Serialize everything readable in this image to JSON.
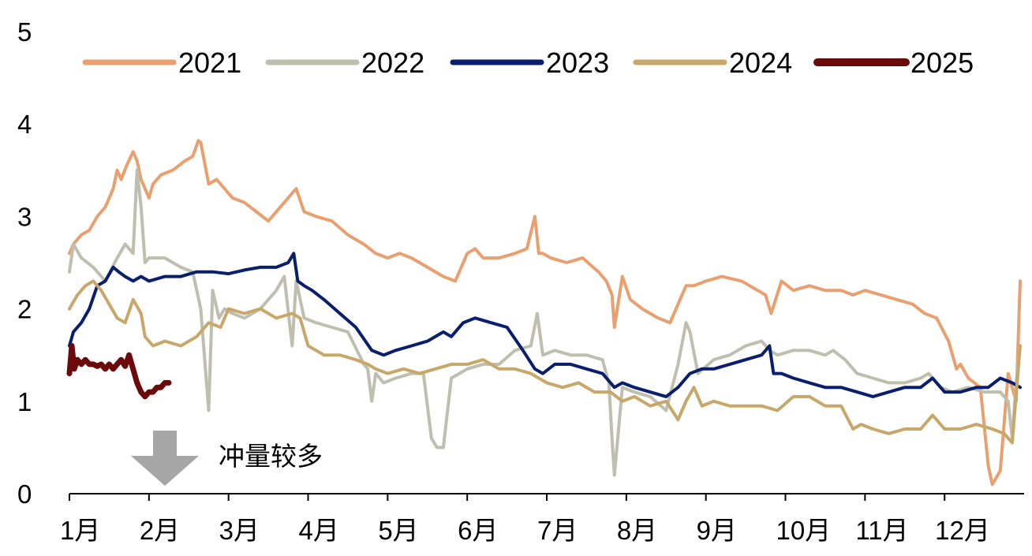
{
  "chart_data": {
    "type": "line",
    "title": "",
    "xlabel": "",
    "ylabel": "",
    "ylim": [
      0,
      5
    ],
    "yticks": [
      0,
      1,
      2,
      3,
      4,
      5
    ],
    "xlim": [
      1,
      13
    ],
    "xticks": [
      {
        "value": 1,
        "label": "1月"
      },
      {
        "value": 2,
        "label": "2月"
      },
      {
        "value": 3,
        "label": "3月"
      },
      {
        "value": 4,
        "label": "4月"
      },
      {
        "value": 5,
        "label": "5月"
      },
      {
        "value": 6,
        "label": "6月"
      },
      {
        "value": 7,
        "label": "7月"
      },
      {
        "value": 8,
        "label": "8月"
      },
      {
        "value": 9,
        "label": "9月"
      },
      {
        "value": 10,
        "label": "10月"
      },
      {
        "value": 11,
        "label": "11月"
      },
      {
        "value": 12,
        "label": "12月"
      }
    ],
    "grid": false,
    "legend_position": "top",
    "annotation": {
      "text": "冲量较多",
      "arrow": "down",
      "arrow_color": "#A6A6A6",
      "x": 2.2,
      "y": 0.7
    },
    "series": [
      {
        "name": "2021",
        "color": "#E8A070",
        "width": 4,
        "x": [
          1.0,
          1.05,
          1.15,
          1.25,
          1.35,
          1.45,
          1.55,
          1.6,
          1.65,
          1.72,
          1.8,
          1.85,
          1.9,
          1.95,
          2.0,
          2.05,
          2.15,
          2.3,
          2.45,
          2.55,
          2.62,
          2.65,
          2.75,
          2.85,
          2.95,
          3.05,
          3.2,
          3.35,
          3.5,
          3.65,
          3.8,
          3.85,
          3.95,
          4.1,
          4.3,
          4.5,
          4.7,
          4.85,
          5.0,
          5.15,
          5.3,
          5.5,
          5.7,
          5.85,
          6.0,
          6.1,
          6.2,
          6.4,
          6.6,
          6.75,
          6.85,
          6.9,
          6.95,
          7.05,
          7.25,
          7.45,
          7.65,
          7.75,
          7.82,
          7.85,
          7.95,
          8.05,
          8.2,
          8.4,
          8.55,
          8.65,
          8.75,
          8.85,
          9.0,
          9.2,
          9.45,
          9.65,
          9.75,
          9.82,
          9.95,
          10.1,
          10.3,
          10.5,
          10.7,
          10.85,
          11.0,
          11.2,
          11.4,
          11.6,
          11.75,
          11.9,
          12.05,
          12.15,
          12.2,
          12.3,
          12.45,
          12.55,
          12.6,
          12.7,
          12.8,
          12.9,
          12.95
        ],
        "y": [
          2.6,
          2.7,
          2.8,
          2.85,
          3.0,
          3.1,
          3.3,
          3.5,
          3.4,
          3.55,
          3.7,
          3.6,
          3.4,
          3.3,
          3.2,
          3.35,
          3.45,
          3.5,
          3.6,
          3.65,
          3.82,
          3.8,
          3.35,
          3.4,
          3.3,
          3.2,
          3.15,
          3.05,
          2.95,
          3.1,
          3.25,
          3.3,
          3.05,
          3.0,
          2.95,
          2.8,
          2.7,
          2.6,
          2.55,
          2.6,
          2.55,
          2.45,
          2.35,
          2.3,
          2.6,
          2.65,
          2.55,
          2.55,
          2.6,
          2.65,
          3.0,
          2.6,
          2.6,
          2.55,
          2.5,
          2.55,
          2.4,
          2.3,
          2.15,
          1.8,
          2.35,
          2.1,
          2.0,
          1.9,
          1.85,
          2.05,
          2.25,
          2.25,
          2.3,
          2.35,
          2.3,
          2.2,
          2.15,
          1.95,
          2.3,
          2.2,
          2.25,
          2.2,
          2.2,
          2.15,
          2.2,
          2.15,
          2.1,
          2.05,
          1.95,
          1.9,
          1.65,
          1.35,
          1.4,
          1.25,
          1.15,
          0.3,
          0.1,
          0.25,
          1.3,
          1.0,
          2.3
        ]
      },
      {
        "name": "2022",
        "color": "#BFBFAF",
        "width": 4,
        "x": [
          1.0,
          1.05,
          1.15,
          1.3,
          1.45,
          1.6,
          1.7,
          1.8,
          1.85,
          1.9,
          1.95,
          2.0,
          2.2,
          2.4,
          2.55,
          2.65,
          2.75,
          2.8,
          2.88,
          2.95,
          3.05,
          3.2,
          3.4,
          3.6,
          3.7,
          3.8,
          3.85,
          3.95,
          4.1,
          4.3,
          4.5,
          4.7,
          4.75,
          4.8,
          4.85,
          4.95,
          5.1,
          5.3,
          5.45,
          5.55,
          5.62,
          5.7,
          5.8,
          6.0,
          6.2,
          6.4,
          6.6,
          6.8,
          6.88,
          6.95,
          7.1,
          7.3,
          7.5,
          7.7,
          7.78,
          7.82,
          7.85,
          7.95,
          8.1,
          8.3,
          8.5,
          8.65,
          8.75,
          8.8,
          8.9,
          9.1,
          9.3,
          9.5,
          9.7,
          9.8,
          9.9,
          10.1,
          10.3,
          10.5,
          10.6,
          10.75,
          10.9,
          11.1,
          11.3,
          11.5,
          11.7,
          11.8,
          11.95,
          12.1,
          12.3,
          12.5,
          12.7,
          12.8,
          12.85,
          12.9,
          12.95
        ],
        "y": [
          2.4,
          2.7,
          2.55,
          2.45,
          2.3,
          2.55,
          2.7,
          2.6,
          3.5,
          3.1,
          2.5,
          2.55,
          2.55,
          2.45,
          2.4,
          2.0,
          0.9,
          2.2,
          1.9,
          2.0,
          1.95,
          1.9,
          2.0,
          2.2,
          2.35,
          1.6,
          2.3,
          1.9,
          1.85,
          1.8,
          1.75,
          1.4,
          1.35,
          1.0,
          1.3,
          1.2,
          1.25,
          1.3,
          1.3,
          0.6,
          0.5,
          0.5,
          1.25,
          1.35,
          1.4,
          1.4,
          1.55,
          1.6,
          1.95,
          1.5,
          1.55,
          1.5,
          1.5,
          1.45,
          1.2,
          0.6,
          0.2,
          1.15,
          1.1,
          1.05,
          0.9,
          1.4,
          1.85,
          1.75,
          1.3,
          1.45,
          1.5,
          1.6,
          1.65,
          1.55,
          1.5,
          1.55,
          1.55,
          1.5,
          1.55,
          1.45,
          1.3,
          1.25,
          1.2,
          1.2,
          1.25,
          1.3,
          1.15,
          1.1,
          1.15,
          1.1,
          1.1,
          1.0,
          0.6,
          1.2,
          1.6
        ]
      },
      {
        "name": "2023",
        "color": "#0A1E6E",
        "width": 4,
        "x": [
          1.0,
          1.05,
          1.15,
          1.25,
          1.35,
          1.45,
          1.55,
          1.62,
          1.7,
          1.8,
          1.9,
          2.0,
          2.2,
          2.4,
          2.6,
          2.8,
          3.0,
          3.2,
          3.4,
          3.6,
          3.75,
          3.82,
          3.87,
          3.95,
          4.05,
          4.2,
          4.4,
          4.6,
          4.8,
          4.95,
          5.1,
          5.3,
          5.5,
          5.7,
          5.8,
          5.95,
          6.1,
          6.3,
          6.5,
          6.7,
          6.85,
          6.95,
          7.1,
          7.3,
          7.5,
          7.7,
          7.85,
          7.95,
          8.1,
          8.3,
          8.5,
          8.65,
          8.8,
          8.95,
          9.1,
          9.3,
          9.5,
          9.7,
          9.8,
          9.85,
          9.95,
          10.1,
          10.3,
          10.5,
          10.7,
          10.9,
          11.1,
          11.3,
          11.5,
          11.7,
          11.85,
          12.0,
          12.2,
          12.4,
          12.55,
          12.7,
          12.85,
          12.95
        ],
        "y": [
          1.6,
          1.75,
          1.85,
          2.0,
          2.25,
          2.3,
          2.45,
          2.4,
          2.35,
          2.3,
          2.35,
          2.3,
          2.35,
          2.35,
          2.4,
          2.4,
          2.38,
          2.42,
          2.45,
          2.45,
          2.5,
          2.6,
          2.3,
          2.25,
          2.2,
          2.1,
          1.95,
          1.8,
          1.55,
          1.5,
          1.55,
          1.6,
          1.65,
          1.75,
          1.7,
          1.85,
          1.9,
          1.85,
          1.8,
          1.55,
          1.35,
          1.3,
          1.4,
          1.4,
          1.35,
          1.3,
          1.15,
          1.2,
          1.15,
          1.1,
          1.05,
          1.15,
          1.3,
          1.35,
          1.35,
          1.4,
          1.45,
          1.5,
          1.6,
          1.3,
          1.3,
          1.25,
          1.2,
          1.15,
          1.15,
          1.1,
          1.05,
          1.1,
          1.15,
          1.15,
          1.25,
          1.1,
          1.1,
          1.15,
          1.15,
          1.25,
          1.2,
          1.15
        ]
      },
      {
        "name": "2024",
        "color": "#C8A86A",
        "width": 4,
        "x": [
          1.0,
          1.1,
          1.2,
          1.3,
          1.4,
          1.5,
          1.6,
          1.7,
          1.8,
          1.9,
          1.95,
          2.05,
          2.2,
          2.4,
          2.6,
          2.75,
          2.9,
          3.0,
          3.2,
          3.4,
          3.6,
          3.8,
          3.9,
          4.0,
          4.2,
          4.4,
          4.6,
          4.75,
          4.85,
          5.0,
          5.2,
          5.4,
          5.6,
          5.8,
          6.0,
          6.2,
          6.4,
          6.6,
          6.8,
          6.9,
          7.0,
          7.2,
          7.4,
          7.6,
          7.8,
          7.95,
          8.1,
          8.3,
          8.5,
          8.65,
          8.75,
          8.85,
          8.95,
          9.1,
          9.3,
          9.5,
          9.7,
          9.9,
          10.1,
          10.3,
          10.5,
          10.7,
          10.85,
          10.95,
          11.1,
          11.3,
          11.5,
          11.7,
          11.85,
          12.0,
          12.2,
          12.4,
          12.6,
          12.75,
          12.85,
          12.95
        ],
        "y": [
          2.0,
          2.15,
          2.25,
          2.3,
          2.2,
          2.05,
          1.9,
          1.85,
          2.1,
          1.95,
          1.7,
          1.6,
          1.65,
          1.6,
          1.7,
          1.85,
          1.8,
          2.0,
          1.95,
          2.0,
          1.9,
          1.95,
          1.9,
          1.6,
          1.5,
          1.5,
          1.45,
          1.4,
          1.35,
          1.3,
          1.35,
          1.3,
          1.35,
          1.4,
          1.4,
          1.45,
          1.35,
          1.35,
          1.3,
          1.25,
          1.2,
          1.15,
          1.2,
          1.1,
          1.1,
          1.0,
          1.05,
          0.95,
          1.0,
          0.8,
          1.0,
          1.15,
          0.95,
          1.0,
          0.95,
          0.95,
          0.95,
          0.9,
          1.05,
          1.05,
          0.95,
          0.95,
          0.7,
          0.75,
          0.7,
          0.65,
          0.7,
          0.7,
          0.85,
          0.7,
          0.7,
          0.75,
          0.7,
          0.65,
          0.55,
          1.6
        ]
      },
      {
        "name": "2025",
        "color": "#6B0A0A",
        "width": 7,
        "x": [
          1.0,
          1.03,
          1.06,
          1.1,
          1.15,
          1.2,
          1.25,
          1.3,
          1.35,
          1.4,
          1.45,
          1.5,
          1.55,
          1.6,
          1.65,
          1.7,
          1.75,
          1.8,
          1.85,
          1.9,
          1.95,
          2.0,
          2.05,
          2.1,
          2.15,
          2.2,
          2.25
        ],
        "y": [
          1.3,
          1.6,
          1.35,
          1.45,
          1.4,
          1.45,
          1.4,
          1.4,
          1.38,
          1.4,
          1.35,
          1.4,
          1.35,
          1.4,
          1.45,
          1.38,
          1.5,
          1.35,
          1.2,
          1.1,
          1.05,
          1.1,
          1.1,
          1.15,
          1.15,
          1.2,
          1.2
        ]
      }
    ]
  }
}
